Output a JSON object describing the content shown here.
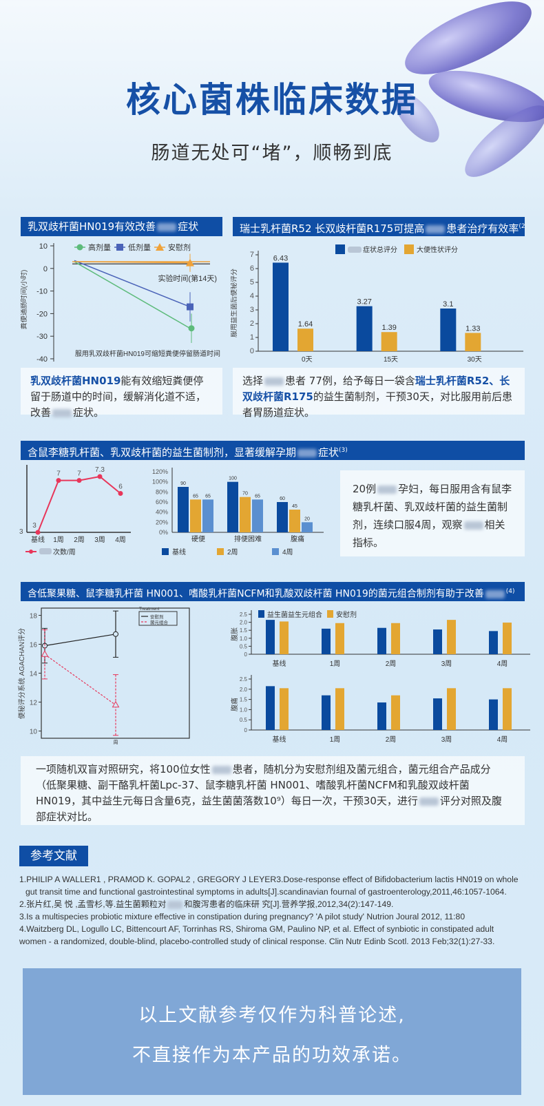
{
  "title": "核心菌株临床数据",
  "subtitle": "肠道无处可“堵”，顺畅到底",
  "colors": {
    "header_blue": "#0f4ea5",
    "dark_blue": "#0a4a9e",
    "orange": "#e3a632",
    "light_blue": "#5a8fd0",
    "green": "#5dbb7b",
    "red": "#e8365a",
    "bottom_box": "#80a7d6"
  },
  "panel1": {
    "header": "乳双歧杆菌HN019有效改善",
    "header_suffix": "症状",
    "desc_bold": "乳双歧杆菌HN019",
    "desc_1": "能有效缩短粪便停留于肠道中的时间，缓解消化道不适，改善",
    "desc_2": "症状。"
  },
  "panel2": {
    "header": "瑞士乳杆菌R52 长双歧杆菌R175可提高",
    "header_suffix": "患者治疗有效率",
    "ref": "(2)",
    "desc_1": "选择",
    "desc_2": "患者 77例，给予每日一袋含",
    "desc_bold1": "瑞士乳杆菌R52、长双歧杆菌R175",
    "desc_3": "的益生菌制剂，干预30天，对比服用前后患者胃肠道症状。"
  },
  "section3": {
    "header": "含鼠李糖乳杆菌、乳双歧杆菌的益生菌制剂，显著缓解孕期",
    "header_suffix": "症状",
    "ref": "(3)",
    "desc_1": "20例",
    "desc_2": "孕妇，每日服用含有鼠李糖乳杆菌、乳双歧杆菌的益生菌制剂，连续口服4周，观察",
    "desc_3": "相关指标。"
  },
  "section4": {
    "header": "含低聚果糖、鼠李糖乳杆菌 HN001、嗜酸乳杆菌NCFM和乳酸双歧杆菌 HN019的菌元组合制剂有助于改善",
    "ref": "(4)",
    "desc_1": "一项随机双盲对照研究，将100位女性",
    "desc_2": "患者，随机分为安慰剂组及菌元组合，菌元组合产品成分（低聚果糖、副干酪乳杆菌Lpc-37、鼠李糖乳杆菌 HN001、嗜酸乳杆菌NCFM和乳酸双歧杆菌HN019，其中益生元每日含量6克，益生菌菌落数10⁹）每日一次，干预30天，进行",
    "desc_3": "评分对照及腹部症状对比。"
  },
  "references": {
    "button": "参考文献",
    "items": [
      "1.PHILIP A WALLER1 , PRAMOD K. GOPAL2 , GREGORY J LEYER3.Dose-response effect of Bifidobacterium lactis HN019 on whole",
      "gut transit time and functional gastrointestinal symptoms in adults[J].scandinavian fournal of gastroenterology,2011,46:1057-1064.",
      "2.张片红,吴 悦 ,孟雪杉,等.益生菌颗粒对",
      "和腹泻患者的临床研 究[J].营养学报,2012,34(2):147-149.",
      "3.Is a multispecies probiotic mixture effective in constipation during pregnancy? 'A pilot study' Nutrion Joural 2012, 11:80",
      "4.Waitzberg DL, Logullo LC, Bittencourt AF, Torrinhas RS, Shiroma GM, Paulino NP, et al. Effect of synbiotic in constipated adult",
      "women - a randomized, double-blind, placebo-controlled study of clinical response. Clin Nutr Edinb Scotl. 2013 Feb;32(1):27-33."
    ]
  },
  "disclaimer": {
    "line1": "以上文献参考仅作为科普论述,",
    "line2": "不直接作为本产品的功效承诺。"
  },
  "chart_data": [
    {
      "id": "c1",
      "type": "line",
      "ylabel": "粪便通肠时间(小时)",
      "ylim": [
        -40,
        10
      ],
      "yticks": [
        10,
        0,
        -10,
        -20,
        -30,
        -40
      ],
      "annotation": "实验时间(第14天)",
      "caption": "服用乳双歧杆菌HN019可缩短粪便停留肠道时间",
      "legend": "top",
      "series": [
        {
          "name": "高剂量",
          "color": "#5dbb7b",
          "marker": "circle",
          "values": [
            3,
            -26.5
          ],
          "err": [
            null,
            6.5
          ]
        },
        {
          "name": "低剂量",
          "color": "#4a63b8",
          "marker": "square",
          "values": [
            3.5,
            -17
          ],
          "err": [
            null,
            6.5
          ]
        },
        {
          "name": "安慰剂",
          "color": "#efa23a",
          "marker": "triangle",
          "values": [
            3,
            2.5
          ],
          "err": [
            null,
            4
          ]
        }
      ]
    },
    {
      "id": "c2",
      "type": "bar",
      "ylabel": "服用益生菌后便秘评分",
      "ylim": [
        0,
        7
      ],
      "yticks": [
        0,
        1,
        2,
        3,
        4,
        5,
        6,
        7
      ],
      "legend": "top",
      "categories": [
        "0天",
        "15天",
        "30天"
      ],
      "series": [
        {
          "name": "症状总评分",
          "name_blurred_prefix": true,
          "color": "#0a4a9e",
          "values": [
            6.43,
            3.27,
            3.1
          ]
        },
        {
          "name": "大便性状评分",
          "color": "#e3a632",
          "values": [
            1.64,
            1.39,
            1.33
          ]
        }
      ]
    },
    {
      "id": "c3",
      "type": "line",
      "categories": [
        "基线",
        "1周",
        "2周",
        "3周",
        "4周"
      ],
      "values": [
        3,
        7,
        7,
        7.3,
        6
      ],
      "color": "#e8365a",
      "legend_label": "次数/周",
      "legend": "bottom-left"
    },
    {
      "id": "c4",
      "type": "bar",
      "ylim": [
        0,
        120
      ],
      "yticks": [
        "0%",
        "20%",
        "40%",
        "60%",
        "80%",
        "100%",
        "120%"
      ],
      "legend": "bottom",
      "categories": [
        "硬便",
        "排便困难",
        "腹痛"
      ],
      "series": [
        {
          "name": "基线",
          "color": "#0a4a9e",
          "values": [
            90,
            100,
            60
          ]
        },
        {
          "name": "2周",
          "color": "#e3a632",
          "values": [
            65,
            70,
            45
          ]
        },
        {
          "name": "4周",
          "color": "#5a8fd0",
          "values": [
            65,
            65,
            20
          ]
        }
      ]
    },
    {
      "id": "c5",
      "type": "line",
      "ylabel": "便秘评分系统 AGACHAN评分",
      "ylim": [
        9.5,
        18.5
      ],
      "yticks": [
        10,
        12,
        14,
        16,
        18
      ],
      "xlabel": "周",
      "legend_title": "Treatment",
      "legend": "top-right",
      "series": [
        {
          "name": "安慰剂",
          "color": "#222222",
          "values": [
            15.9,
            16.7
          ],
          "err": [
            1.2,
            1.6
          ]
        },
        {
          "name": "菌元组合",
          "color": "#e8365a",
          "values": [
            15.3,
            11.8
          ],
          "err": [
            1.7,
            2.1
          ]
        }
      ]
    },
    {
      "id": "c6",
      "type": "bar",
      "ylabel": "腹胀",
      "ylim": [
        0,
        2.5
      ],
      "yticks": [
        "0",
        "0.5",
        "1.0",
        "1.5",
        "2.0",
        "2.5"
      ],
      "legend": "top",
      "categories": [
        "基线",
        "1周",
        "2周",
        "3周",
        "4周"
      ],
      "series": [
        {
          "name": "益生菌益生元组合",
          "color": "#0a4a9e",
          "values": [
            2.15,
            1.6,
            1.65,
            1.55,
            1.45
          ]
        },
        {
          "name": "安慰剂",
          "color": "#e3a632",
          "values": [
            2.05,
            1.95,
            1.95,
            2.15,
            1.98
          ]
        }
      ]
    },
    {
      "id": "c7",
      "type": "bar",
      "ylabel": "腹痛",
      "ylim": [
        0,
        2.5
      ],
      "yticks": [
        "0",
        "0.5",
        "1.0",
        "1.5",
        "2.0",
        "2.5"
      ],
      "categories": [
        "基线",
        "1周",
        "2周",
        "3周",
        "4周"
      ],
      "series": [
        {
          "name": "益生菌益生元组合",
          "color": "#0a4a9e",
          "values": [
            2.15,
            1.7,
            1.35,
            1.55,
            1.5
          ]
        },
        {
          "name": "安慰剂",
          "color": "#e3a632",
          "values": [
            2.05,
            2.05,
            1.7,
            2.05,
            2.05
          ]
        }
      ]
    }
  ]
}
